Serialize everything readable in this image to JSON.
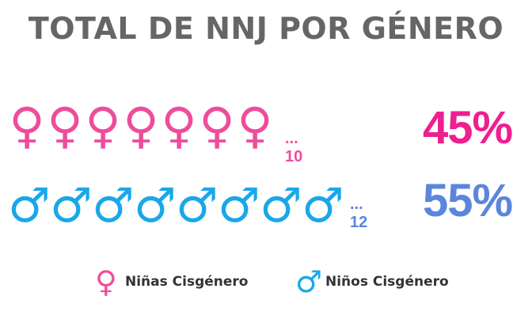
{
  "chart_data": {
    "type": "pictograph",
    "title": "TOTAL DE NNJ POR GÉNERO",
    "series": [
      {
        "name": "Niñas Cisgénero",
        "icon": "female-symbol-icon",
        "icons_shown": 7,
        "count_label": "... 10",
        "count": 10,
        "percent_label": "45%",
        "percent": 45,
        "color": "#ee4d9b"
      },
      {
        "name": "Niños Cisgénero",
        "icon": "male-symbol-icon",
        "icons_shown": 8,
        "count_label": "... 12",
        "count": 12,
        "percent_label": "55%",
        "percent": 55,
        "color": "#1aa7e8"
      }
    ],
    "legend": {
      "placement": "bottom",
      "items": [
        "Niñas Cisgénero",
        "Niños Cisgénero"
      ]
    }
  }
}
